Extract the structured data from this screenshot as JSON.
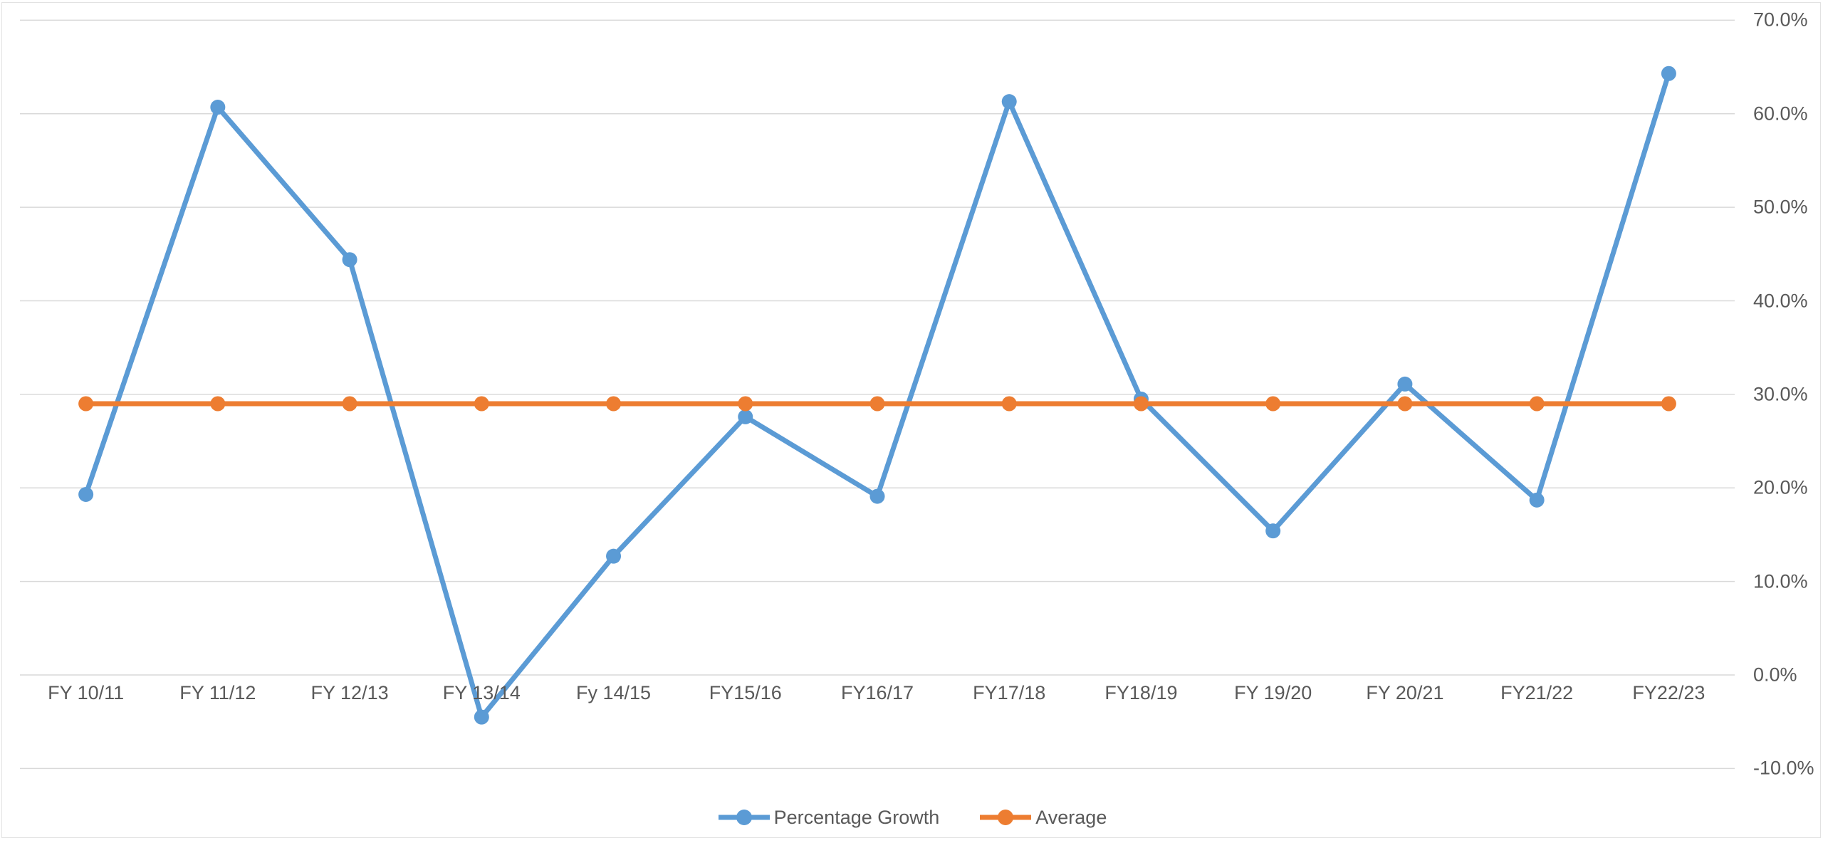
{
  "chart_data": {
    "type": "line",
    "title": "",
    "xlabel": "",
    "ylabel": "",
    "categories": [
      "FY 10/11",
      "FY 11/12",
      "FY 12/13",
      "FY 13/14",
      "Fy 14/15",
      "FY15/16",
      "FY16/17",
      "FY17/18",
      "FY18/19",
      "FY 19/20",
      "FY 20/21",
      "FY21/22",
      "FY22/23"
    ],
    "series": [
      {
        "name": "Percentage Growth",
        "color": "#5B9BD5",
        "values": [
          19.3,
          60.7,
          44.4,
          -4.5,
          12.7,
          27.6,
          19.1,
          61.3,
          29.5,
          15.4,
          31.1,
          18.7,
          64.3
        ]
      },
      {
        "name": "Average",
        "color": "#ED7D31",
        "values": [
          29.0,
          29.0,
          29.0,
          29.0,
          29.0,
          29.0,
          29.0,
          29.0,
          29.0,
          29.0,
          29.0,
          29.0,
          29.0
        ]
      }
    ],
    "ylim": [
      -10,
      70
    ],
    "y_ticks": [
      70,
      60,
      50,
      40,
      30,
      20,
      10,
      0,
      -10
    ],
    "y_tick_labels": [
      "70.0%",
      "60.0%",
      "50.0%",
      "40.0%",
      "30.0%",
      "20.0%",
      "10.0%",
      "0.0%",
      "-10.0%"
    ],
    "yaxis_side": "right",
    "grid": true,
    "gridline_color": "#D9D9D9",
    "axis_label_color": "#595959",
    "legend_position": "bottom",
    "background_color": "#FFFFFF"
  }
}
